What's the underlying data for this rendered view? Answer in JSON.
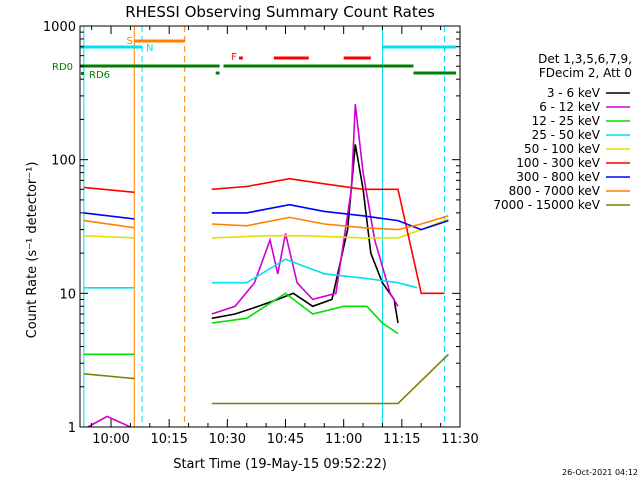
{
  "chart_data": {
    "type": "line",
    "title": "RHESSI Observing Summary Count Rates",
    "xlabel": "Start Time (19-May-15 09:52:22)",
    "ylabel": "Count Rate (s⁻¹ detector⁻¹)",
    "yscale": "log",
    "ylim": [
      1,
      1000
    ],
    "xlim": [
      "09:52",
      "11:30"
    ],
    "x_ticks": [
      "10:00",
      "10:15",
      "10:30",
      "10:45",
      "11:00",
      "11:15",
      "11:30"
    ],
    "y_ticks": [
      "1",
      "10",
      "100",
      "1000"
    ],
    "legend_header": [
      "Det 1,3,5,6,7,9,",
      "FDecim 2, Att 0"
    ],
    "legend_placement": "right",
    "date_stamp": "26-Oct-2021 04:12",
    "flag_labels": {
      "saa": "S",
      "night": "N",
      "flare": "F",
      "rd0": "RD0",
      "rd6": "RD6"
    },
    "series": [
      {
        "name": "3 - 6 keV",
        "color": "#000000",
        "points": [
          [
            "10:26",
            6.5
          ],
          [
            "10:32",
            7
          ],
          [
            "10:38",
            8
          ],
          [
            "10:43",
            9
          ],
          [
            "10:47",
            10
          ],
          [
            "10:52",
            8
          ],
          [
            "10:57",
            9
          ],
          [
            "11:01",
            30
          ],
          [
            "11:03",
            130
          ],
          [
            "11:05",
            60
          ],
          [
            "11:07",
            20
          ],
          [
            "11:10",
            12
          ],
          [
            "11:13",
            9
          ],
          [
            "11:14",
            6
          ]
        ]
      },
      {
        "name": "6 - 12 keV",
        "color": "#d000d0",
        "points": [
          [
            "09:54",
            1.0
          ],
          [
            "09:59",
            1.2
          ],
          [
            "10:05",
            1.0
          ],
          [
            "10:26",
            7
          ],
          [
            "10:32",
            8
          ],
          [
            "10:37",
            12
          ],
          [
            "10:41",
            25
          ],
          [
            "10:43",
            14
          ],
          [
            "10:45",
            28
          ],
          [
            "10:48",
            12
          ],
          [
            "10:52",
            9
          ],
          [
            "10:58",
            10
          ],
          [
            "11:02",
            60
          ],
          [
            "11:03",
            260
          ],
          [
            "11:05",
            80
          ],
          [
            "11:08",
            25
          ],
          [
            "11:12",
            10
          ],
          [
            "11:14",
            8
          ]
        ]
      },
      {
        "name": "12 - 25 keV",
        "color": "#00e000",
        "points": [
          [
            "09:53",
            3.5
          ],
          [
            "10:06",
            3.5
          ],
          [
            "10:26",
            6
          ],
          [
            "10:35",
            6.5
          ],
          [
            "10:45",
            10
          ],
          [
            "10:52",
            7
          ],
          [
            "11:00",
            8
          ],
          [
            "11:06",
            8
          ],
          [
            "11:10",
            6
          ],
          [
            "11:14",
            5
          ]
        ]
      },
      {
        "name": "25 - 50 keV",
        "color": "#00e0f0",
        "points": [
          [
            "09:53",
            11
          ],
          [
            "10:06",
            11
          ],
          [
            "10:26",
            12
          ],
          [
            "10:35",
            12
          ],
          [
            "10:45",
            18
          ],
          [
            "10:55",
            14
          ],
          [
            "11:05",
            13
          ],
          [
            "11:14",
            12
          ],
          [
            "11:19",
            11
          ]
        ]
      },
      {
        "name": "50 - 100 keV",
        "color": "#e0e000",
        "points": [
          [
            "09:53",
            27
          ],
          [
            "10:06",
            26
          ],
          [
            "10:26",
            26
          ],
          [
            "10:40",
            27
          ],
          [
            "10:50",
            27
          ],
          [
            "11:05",
            26
          ],
          [
            "11:14",
            26
          ],
          [
            "11:20",
            30
          ],
          [
            "11:27",
            36
          ]
        ]
      },
      {
        "name": "100 - 300 keV",
        "color": "#ff0000",
        "points": [
          [
            "09:53",
            62
          ],
          [
            "10:06",
            57
          ],
          [
            "10:26",
            60
          ],
          [
            "10:35",
            63
          ],
          [
            "10:46",
            72
          ],
          [
            "10:55",
            66
          ],
          [
            "11:05",
            60
          ],
          [
            "11:14",
            60
          ],
          [
            "11:20",
            10
          ],
          [
            "11:26",
            10
          ]
        ]
      },
      {
        "name": "300 - 800 keV",
        "color": "#0000ff",
        "points": [
          [
            "09:53",
            40
          ],
          [
            "10:06",
            36
          ],
          [
            "10:26",
            40
          ],
          [
            "10:35",
            40
          ],
          [
            "10:46",
            46
          ],
          [
            "10:55",
            41
          ],
          [
            "11:05",
            38
          ],
          [
            "11:14",
            35
          ],
          [
            "11:20",
            30
          ],
          [
            "11:27",
            35
          ]
        ]
      },
      {
        "name": "800 - 7000 keV",
        "color": "#ff8000",
        "points": [
          [
            "09:53",
            35
          ],
          [
            "10:06",
            31
          ],
          [
            "10:26",
            33
          ],
          [
            "10:35",
            32
          ],
          [
            "10:46",
            37
          ],
          [
            "10:55",
            33
          ],
          [
            "11:05",
            31
          ],
          [
            "11:14",
            30
          ],
          [
            "11:20",
            33
          ],
          [
            "11:27",
            38
          ]
        ]
      },
      {
        "name": "7000 - 15000 keV",
        "color": "#808000",
        "points": [
          [
            "09:53",
            2.5
          ],
          [
            "10:06",
            2.3
          ],
          [
            "10:26",
            1.5
          ],
          [
            "10:50",
            1.5
          ],
          [
            "11:05",
            1.5
          ],
          [
            "11:14",
            1.5
          ],
          [
            "11:27",
            3.5
          ]
        ]
      }
    ]
  }
}
